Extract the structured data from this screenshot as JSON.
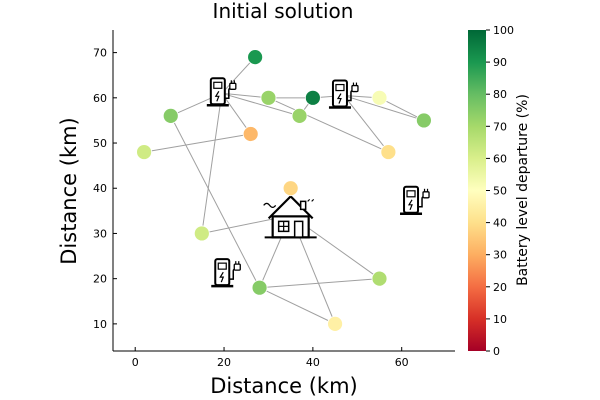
{
  "chart_data": {
    "type": "scatter",
    "title": "Initial solution",
    "xlabel": "Distance (km)",
    "ylabel": "Distance (km)",
    "xlim": [
      -5,
      72
    ],
    "ylim": [
      4,
      75
    ],
    "xticks": [
      0,
      20,
      40,
      60
    ],
    "yticks": [
      10,
      20,
      30,
      40,
      50,
      60,
      70
    ],
    "grid": false,
    "colorbar": {
      "label": "Battery level departure (%)",
      "range": [
        0,
        100
      ],
      "ticks": [
        0,
        10,
        20,
        30,
        40,
        50,
        60,
        70,
        80,
        90,
        100
      ],
      "colormap": "RdYlGn"
    },
    "depot": {
      "name": "depot-house",
      "x": 35,
      "y": 34
    },
    "charging_stations": [
      {
        "x": 19.5,
        "y": 61
      },
      {
        "x": 47,
        "y": 60.5
      },
      {
        "x": 63,
        "y": 37
      },
      {
        "x": 20.5,
        "y": 21
      }
    ],
    "customers": [
      {
        "x": 27,
        "y": 69,
        "battery": 90
      },
      {
        "x": 8,
        "y": 56,
        "battery": 75
      },
      {
        "x": 30,
        "y": 60,
        "battery": 72
      },
      {
        "x": 40,
        "y": 60,
        "battery": 95
      },
      {
        "x": 55,
        "y": 60,
        "battery": 52
      },
      {
        "x": 37,
        "y": 56,
        "battery": 72
      },
      {
        "x": 65,
        "y": 55,
        "battery": 75
      },
      {
        "x": 26,
        "y": 52,
        "battery": 32
      },
      {
        "x": 2,
        "y": 48,
        "battery": 62
      },
      {
        "x": 57,
        "y": 48,
        "battery": 40
      },
      {
        "x": 35,
        "y": 40,
        "battery": 38
      },
      {
        "x": 15,
        "y": 30,
        "battery": 62
      },
      {
        "x": 55,
        "y": 20,
        "battery": 68
      },
      {
        "x": 28,
        "y": 18,
        "battery": 75
      },
      {
        "x": 45,
        "y": 10,
        "battery": 45
      }
    ],
    "routes": [
      [
        [
          19.5,
          61
        ],
        [
          27,
          69
        ]
      ],
      [
        [
          19.5,
          61
        ],
        [
          8,
          56
        ]
      ],
      [
        [
          19.5,
          61
        ],
        [
          26,
          52
        ]
      ],
      [
        [
          19.5,
          61
        ],
        [
          15,
          30
        ]
      ],
      [
        [
          19.5,
          61
        ],
        [
          30,
          60
        ]
      ],
      [
        [
          30,
          60
        ],
        [
          40,
          60
        ]
      ],
      [
        [
          40,
          60
        ],
        [
          37,
          56
        ]
      ],
      [
        [
          37,
          56
        ],
        [
          19.5,
          61
        ]
      ],
      [
        [
          8,
          56
        ],
        [
          28,
          18
        ]
      ],
      [
        [
          26,
          52
        ],
        [
          2,
          48
        ]
      ],
      [
        [
          47,
          60.5
        ],
        [
          40,
          60
        ]
      ],
      [
        [
          47,
          60.5
        ],
        [
          55,
          60
        ]
      ],
      [
        [
          55,
          60
        ],
        [
          65,
          55
        ]
      ],
      [
        [
          65,
          55
        ],
        [
          47,
          60.5
        ]
      ],
      [
        [
          47,
          60.5
        ],
        [
          57,
          48
        ]
      ],
      [
        [
          57,
          48
        ],
        [
          30,
          60
        ]
      ],
      [
        [
          35,
          34
        ],
        [
          35,
          40
        ]
      ],
      [
        [
          35,
          34
        ],
        [
          15,
          30
        ]
      ],
      [
        [
          35,
          34
        ],
        [
          55,
          20
        ]
      ],
      [
        [
          35,
          34
        ],
        [
          45,
          10
        ]
      ],
      [
        [
          35,
          34
        ],
        [
          28,
          18
        ]
      ],
      [
        [
          55,
          20
        ],
        [
          28,
          18
        ]
      ],
      [
        [
          28,
          18
        ],
        [
          45,
          10
        ]
      ]
    ]
  }
}
